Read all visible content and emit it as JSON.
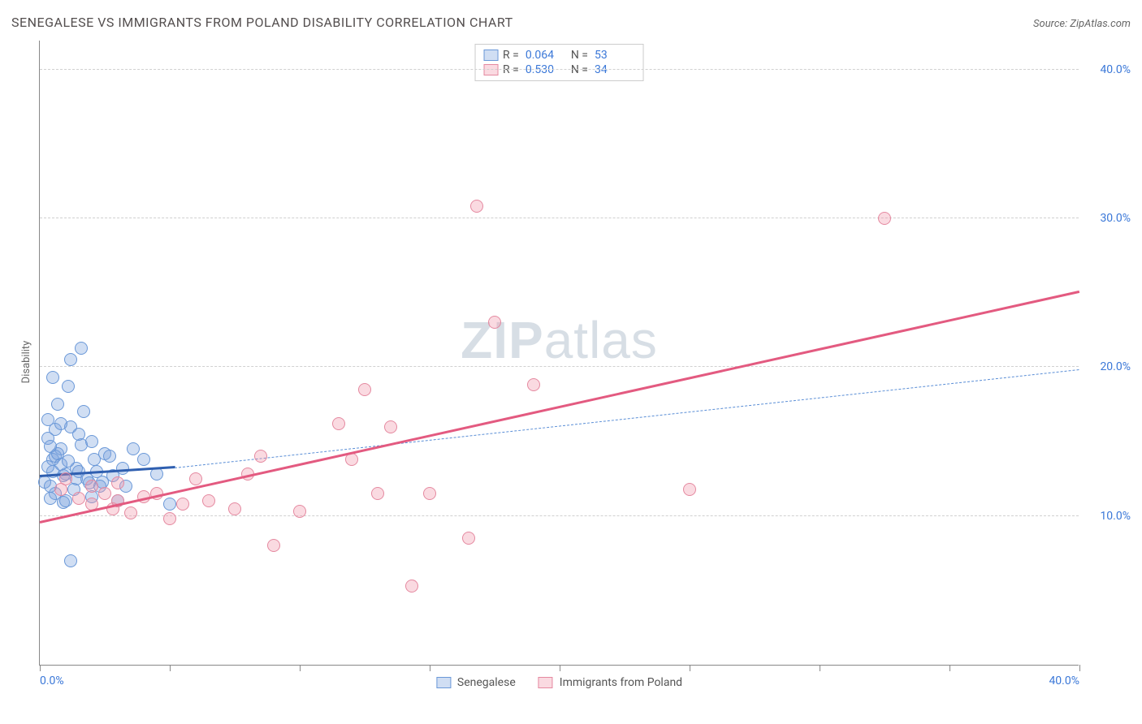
{
  "title": "SENEGALESE VS IMMIGRANTS FROM POLAND DISABILITY CORRELATION CHART",
  "source": "Source: ZipAtlas.com",
  "ylabel": "Disability",
  "watermark": {
    "zip": "ZIP",
    "atlas": "atlas"
  },
  "chart": {
    "type": "scatter",
    "xlim": [
      0,
      40
    ],
    "ylim": [
      0,
      42
    ],
    "xticks": [
      0,
      5,
      10,
      15,
      20,
      25,
      30,
      35,
      40
    ],
    "yticks": [
      10,
      20,
      30,
      40
    ],
    "xtick_labels": {
      "0": "0.0%",
      "40": "40.0%"
    },
    "ytick_labels": {
      "10": "10.0%",
      "20": "20.0%",
      "30": "30.0%",
      "40": "40.0%"
    },
    "background_color": "#ffffff",
    "grid_color": "#d0d0d0",
    "axis_color": "#888888",
    "tick_label_color": "#3b78d8",
    "point_radius": 8,
    "series": {
      "senegalese": {
        "label": "Senegalese",
        "fill": "rgba(120,160,220,0.35)",
        "stroke": "#6a98d8",
        "r_value": "0.064",
        "n_value": "53",
        "trend": {
          "x1": 0,
          "y1": 12.6,
          "x2": 5.2,
          "y2": 13.2,
          "color": "#2f5fb0",
          "width": 3,
          "dash": "solid"
        },
        "trend_ext": {
          "x1": 5.2,
          "y1": 13.2,
          "x2": 40,
          "y2": 19.8,
          "color": "#5a8ed6",
          "width": 1.5,
          "dash": "dashed"
        },
        "points": [
          [
            0.2,
            12.3
          ],
          [
            0.5,
            13.8
          ],
          [
            0.6,
            11.5
          ],
          [
            0.8,
            14.5
          ],
          [
            0.3,
            15.2
          ],
          [
            1.0,
            12.8
          ],
          [
            1.2,
            16.0
          ],
          [
            0.9,
            10.9
          ],
          [
            1.4,
            13.2
          ],
          [
            0.4,
            12.0
          ],
          [
            1.6,
            14.8
          ],
          [
            1.3,
            11.8
          ],
          [
            0.7,
            17.5
          ],
          [
            1.8,
            12.5
          ],
          [
            0.5,
            19.3
          ],
          [
            1.1,
            18.7
          ],
          [
            2.2,
            13.0
          ],
          [
            2.0,
            11.3
          ],
          [
            1.5,
            15.5
          ],
          [
            0.6,
            14.0
          ],
          [
            2.5,
            14.2
          ],
          [
            1.9,
            12.2
          ],
          [
            0.3,
            16.5
          ],
          [
            2.8,
            12.7
          ],
          [
            1.7,
            17.0
          ],
          [
            3.0,
            11.0
          ],
          [
            0.8,
            13.5
          ],
          [
            3.3,
            12.0
          ],
          [
            2.1,
            13.8
          ],
          [
            0.4,
            11.2
          ],
          [
            1.2,
            20.5
          ],
          [
            1.6,
            21.3
          ],
          [
            0.9,
            12.7
          ],
          [
            3.6,
            14.5
          ],
          [
            2.4,
            12.3
          ],
          [
            0.5,
            13.0
          ],
          [
            4.0,
            13.8
          ],
          [
            1.0,
            11.0
          ],
          [
            2.7,
            14.0
          ],
          [
            0.6,
            15.8
          ],
          [
            1.4,
            12.5
          ],
          [
            4.5,
            12.8
          ],
          [
            0.7,
            14.2
          ],
          [
            3.2,
            13.2
          ],
          [
            1.1,
            13.7
          ],
          [
            0.3,
            13.3
          ],
          [
            2.0,
            15.0
          ],
          [
            5.0,
            10.8
          ],
          [
            1.2,
            7.0
          ],
          [
            0.8,
            16.2
          ],
          [
            1.5,
            13.0
          ],
          [
            0.4,
            14.7
          ],
          [
            2.3,
            12.0
          ]
        ]
      },
      "poland": {
        "label": "Immigrants from Poland",
        "fill": "rgba(240,150,170,0.35)",
        "stroke": "#e589a0",
        "r_value": "0.530",
        "n_value": "34",
        "trend": {
          "x1": 0,
          "y1": 9.5,
          "x2": 40,
          "y2": 25.0,
          "color": "#e35a80",
          "width": 3,
          "dash": "solid"
        },
        "points": [
          [
            0.8,
            11.8
          ],
          [
            1.0,
            12.5
          ],
          [
            1.5,
            11.2
          ],
          [
            2.0,
            12.0
          ],
          [
            2.0,
            10.8
          ],
          [
            2.5,
            11.5
          ],
          [
            2.8,
            10.5
          ],
          [
            3.0,
            12.2
          ],
          [
            3.0,
            11.0
          ],
          [
            3.5,
            10.2
          ],
          [
            4.0,
            11.3
          ],
          [
            4.5,
            11.5
          ],
          [
            5.0,
            9.8
          ],
          [
            5.5,
            10.8
          ],
          [
            6.0,
            12.5
          ],
          [
            6.5,
            11.0
          ],
          [
            7.5,
            10.5
          ],
          [
            8.0,
            12.8
          ],
          [
            8.5,
            14.0
          ],
          [
            9.0,
            8.0
          ],
          [
            10.0,
            10.3
          ],
          [
            11.5,
            16.2
          ],
          [
            12.0,
            13.8
          ],
          [
            12.5,
            18.5
          ],
          [
            13.0,
            11.5
          ],
          [
            13.5,
            16.0
          ],
          [
            14.3,
            5.3
          ],
          [
            15.0,
            11.5
          ],
          [
            16.5,
            8.5
          ],
          [
            16.8,
            30.8
          ],
          [
            17.5,
            23.0
          ],
          [
            19.0,
            18.8
          ],
          [
            25.0,
            11.8
          ],
          [
            32.5,
            30.0
          ]
        ]
      }
    }
  },
  "legend_top": {
    "r_label": "R =",
    "n_label": "N ="
  },
  "legend_bottom": {
    "s1": "Senegalese",
    "s2": "Immigrants from Poland"
  }
}
